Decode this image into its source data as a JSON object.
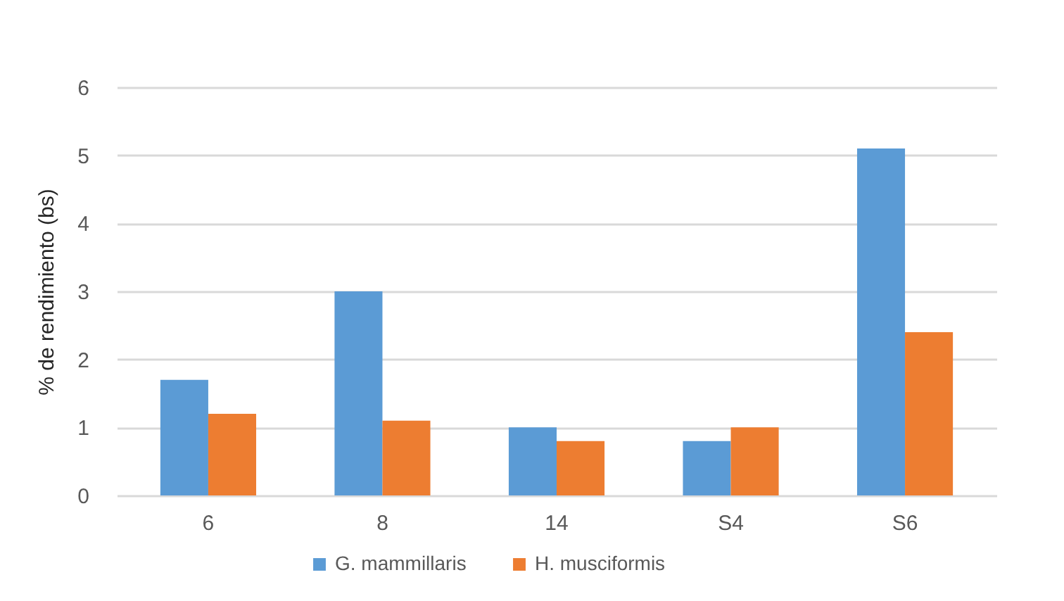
{
  "chart_data": {
    "type": "bar",
    "ylabel": "% de rendimiento (bs)",
    "categories": [
      "6",
      "8",
      "14",
      "S4",
      "S6"
    ],
    "series": [
      {
        "name": "G. mammillaris",
        "color": "#5b9bd5",
        "values": [
          1.7,
          3.0,
          1.0,
          0.8,
          5.1
        ]
      },
      {
        "name": "H. musciformis",
        "color": "#ed7d31",
        "values": [
          1.2,
          1.1,
          0.8,
          1.0,
          2.4
        ]
      }
    ],
    "ylim": [
      0,
      6
    ],
    "yticks": [
      0,
      1,
      2,
      3,
      4,
      5,
      6
    ],
    "grid": "y",
    "legend": "bottom"
  }
}
